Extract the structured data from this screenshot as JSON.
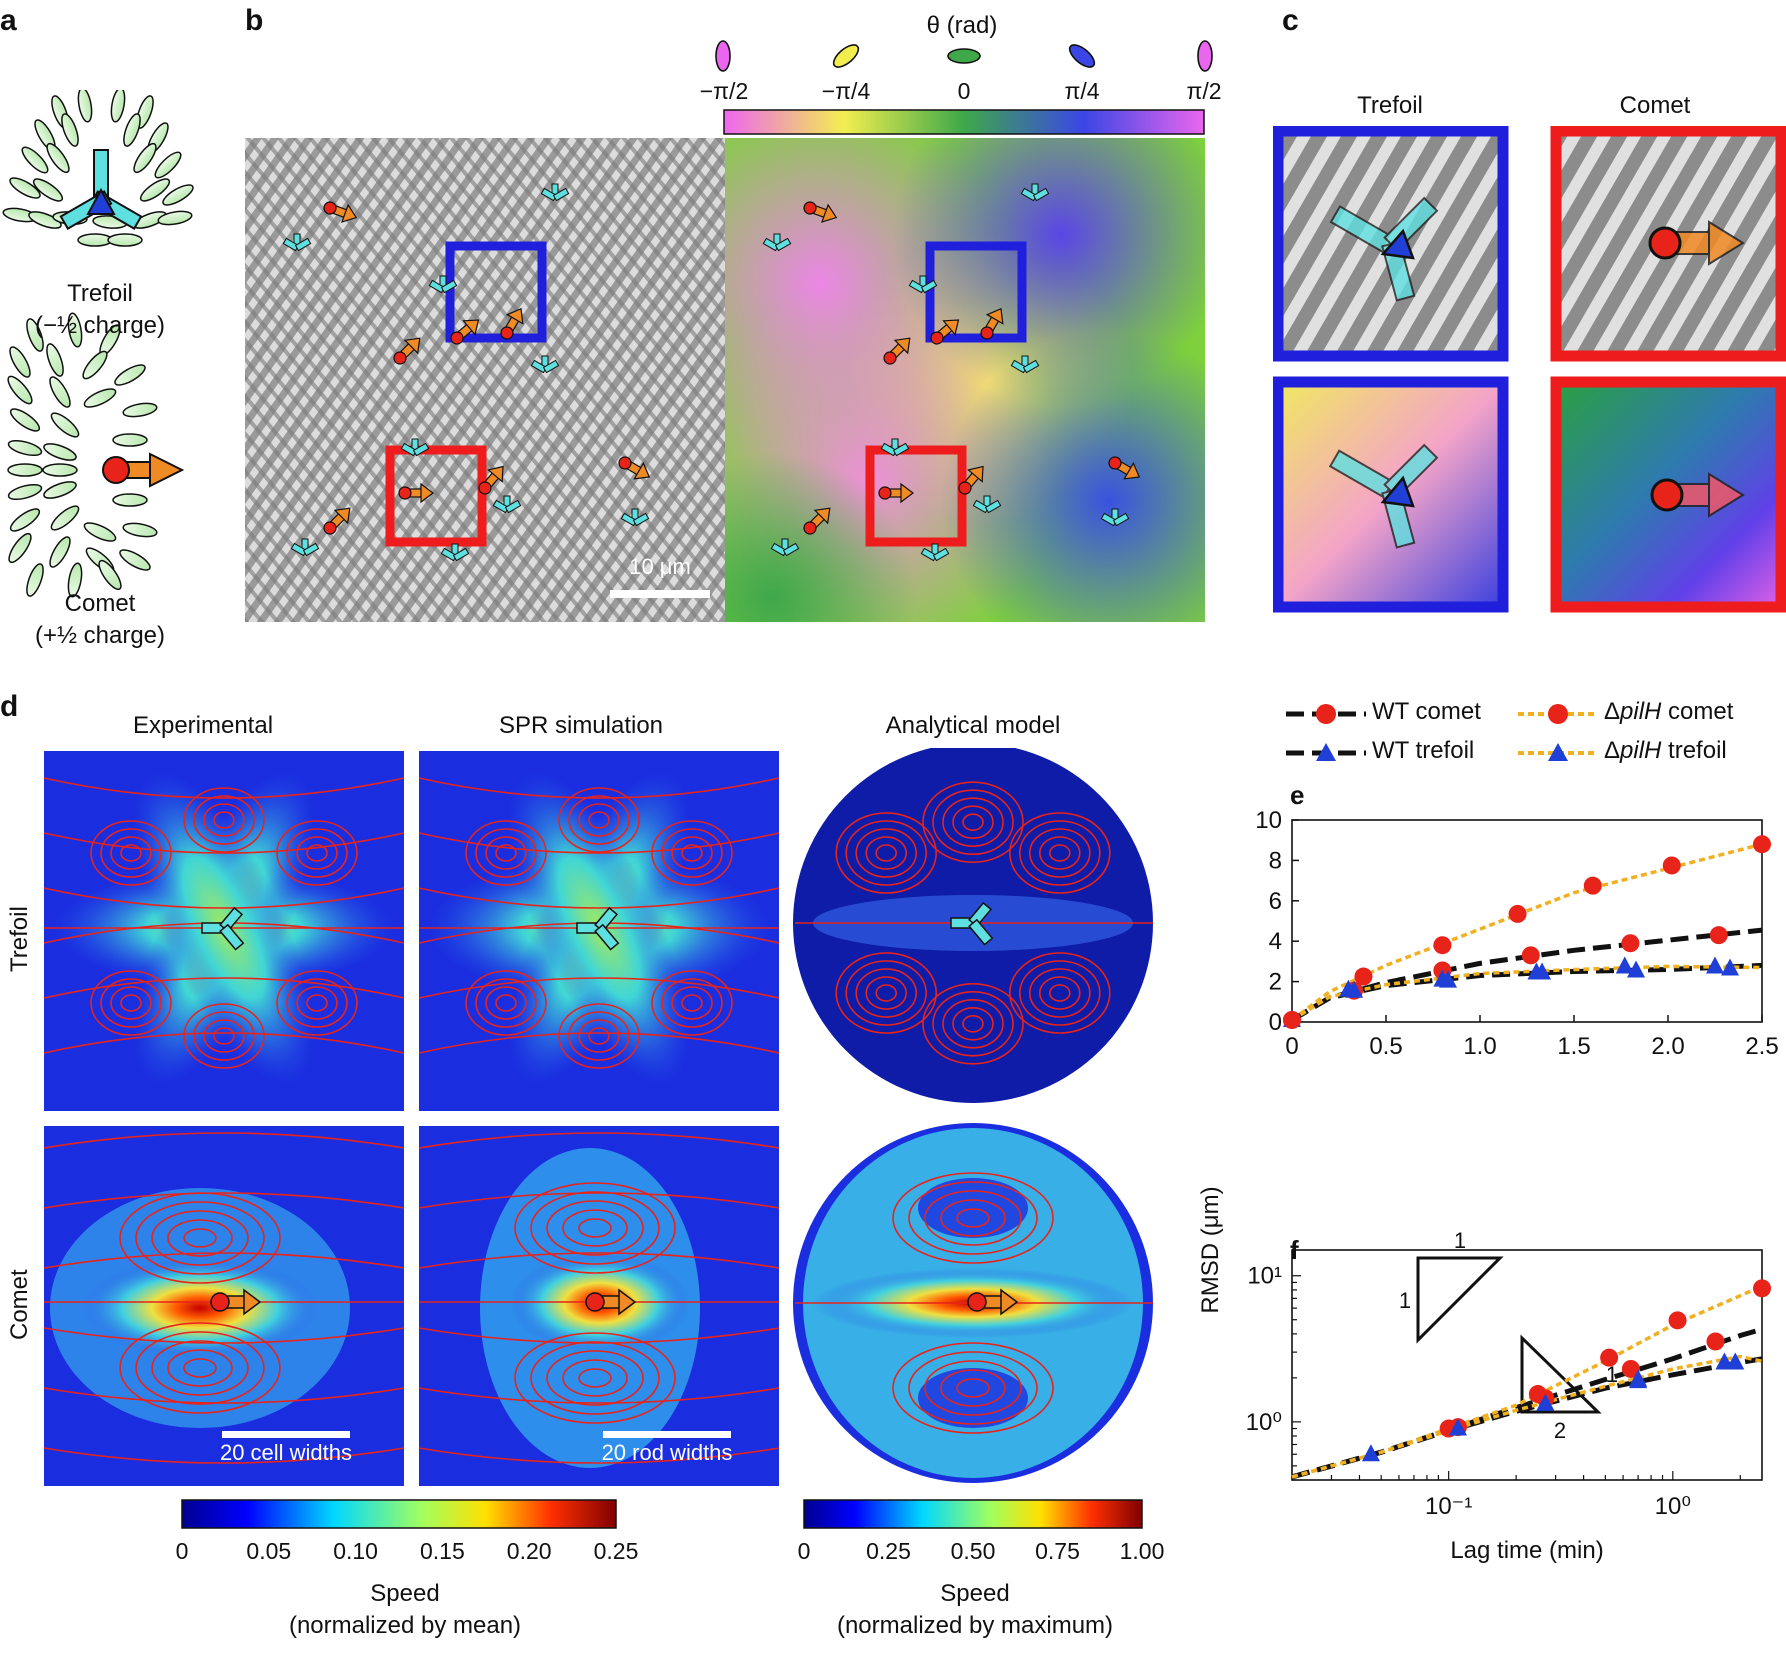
{
  "panel_letters": {
    "a": "a",
    "b": "b",
    "c": "c",
    "d": "d",
    "e": "e",
    "f": "f"
  },
  "panel_a": {
    "trefoil_label": "Trefoil",
    "trefoil_charge": "(−½ charge)",
    "comet_label": "Comet",
    "comet_charge": "(+½ charge)"
  },
  "panel_b": {
    "colorbar_title": "θ (rad)",
    "colorbar_ticks": [
      "−π/2",
      "−π/4",
      "0",
      "π/4",
      "π/2"
    ],
    "scale_bar": "10 μm"
  },
  "panel_c": {
    "col1": "Trefoil",
    "col2": "Comet"
  },
  "panel_d": {
    "col_titles": [
      "Experimental",
      "SPR simulation",
      "Analytical model"
    ],
    "row_titles": [
      "Trefoil",
      "Comet"
    ],
    "scale_cell": "20 cell widths",
    "scale_rod": "20 rod widths",
    "colorbar1_ticks": [
      "0",
      "0.05",
      "0.10",
      "0.15",
      "0.20",
      "0.25"
    ],
    "colorbar1_title_line1": "Speed",
    "colorbar1_title_line2": "(normalized by mean)",
    "colorbar2_ticks": [
      "0",
      "0.25",
      "0.50",
      "0.75",
      "1.00"
    ],
    "colorbar2_title_line1": "Speed",
    "colorbar2_title_line2": "(normalized by maximum)"
  },
  "legend": {
    "wt_comet": "WT comet",
    "wt_trefoil": "WT trefoil",
    "pilh_comet_prefix": "Δ",
    "pilh_comet_gene": "pilH",
    "pilh_comet_suffix": " comet",
    "pilh_trefoil_prefix": "Δ",
    "pilh_trefoil_gene": "pilH",
    "pilh_trefoil_suffix": " trefoil"
  },
  "colors": {
    "wt": "#111111",
    "pilh": "#f0b020",
    "comet_marker": "#e8231a",
    "trefoil_marker": "#1f3fd6",
    "box_blue": "#1f1fdc",
    "box_red": "#ee1c1c",
    "arrow_orange": "#f08a24",
    "trefoil_cyan": "#5fe0e0"
  },
  "chart_data": [
    {
      "type": "line",
      "panel": "e",
      "xlabel": "",
      "ylabel": "RMSD (μm)",
      "xlim": [
        0,
        2.5
      ],
      "ylim": [
        0,
        10
      ],
      "xticks": [
        "0",
        "0.5",
        "1.0",
        "1.5",
        "2.0",
        "2.5"
      ],
      "yticks": [
        "0",
        "2",
        "4",
        "6",
        "8",
        "10"
      ],
      "series": [
        {
          "name": "WT comet",
          "marker": "circle",
          "x": [
            0,
            0.33,
            0.8,
            1.27,
            1.8,
            2.27
          ],
          "y": [
            0.1,
            1.55,
            2.55,
            3.3,
            3.9,
            4.3
          ],
          "curve_x": [
            0,
            0.2,
            0.5,
            1.0,
            1.5,
            2.0,
            2.5
          ],
          "curve_y": [
            0.1,
            1.2,
            1.95,
            2.9,
            3.55,
            4.05,
            4.55
          ]
        },
        {
          "name": "WT trefoil",
          "marker": "triangle",
          "x": [
            0,
            0.33,
            0.83,
            1.33,
            1.83,
            2.33
          ],
          "y": [
            0.1,
            1.55,
            2.05,
            2.45,
            2.55,
            2.65
          ],
          "curve_x": [
            0,
            0.2,
            0.5,
            1.0,
            1.5,
            2.0,
            2.5
          ],
          "curve_y": [
            0.1,
            1.2,
            1.8,
            2.3,
            2.5,
            2.6,
            2.8
          ]
        },
        {
          "name": "ΔpilH comet",
          "marker": "circle",
          "x": [
            0,
            0.38,
            0.8,
            1.2,
            1.6,
            2.02,
            2.5
          ],
          "y": [
            0.1,
            2.25,
            3.8,
            5.35,
            6.75,
            7.75,
            8.8
          ],
          "curve_x": [
            0,
            0.2,
            0.5,
            1.0,
            1.5,
            2.0,
            2.5
          ],
          "curve_y": [
            0.1,
            1.5,
            2.8,
            4.6,
            6.4,
            7.6,
            8.8
          ]
        },
        {
          "name": "ΔpilH trefoil",
          "marker": "triangle",
          "x": [
            0.3,
            0.8,
            1.3,
            1.77,
            2.25
          ],
          "y": [
            1.6,
            2.1,
            2.45,
            2.75,
            2.75
          ],
          "curve_x": [
            0,
            0.2,
            0.5,
            1.0,
            1.5,
            2.0,
            2.5
          ],
          "curve_y": [
            0.1,
            1.25,
            1.85,
            2.4,
            2.6,
            2.75,
            2.7
          ]
        }
      ]
    },
    {
      "type": "line",
      "panel": "f",
      "scale": "log-log",
      "xlabel": "Lag time (min)",
      "ylabel": "RMSD (μm)",
      "xlim": [
        0.02,
        2.5
      ],
      "ylim": [
        0.4,
        15
      ],
      "xticks": [
        "10⁻¹",
        "10⁰"
      ],
      "yticks": [
        "10⁰",
        "10¹"
      ],
      "slope_labels": [
        "1",
        "1",
        "1",
        "2"
      ],
      "series": [
        {
          "name": "WT comet",
          "marker": "circle",
          "x": [
            0.11,
            0.27,
            0.65,
            1.55
          ],
          "y": [
            0.92,
            1.45,
            2.3,
            3.55
          ],
          "curve_x": [
            0.02,
            0.05,
            0.1,
            0.2,
            0.5,
            1.0,
            2.0,
            2.5
          ],
          "curve_y": [
            0.42,
            0.62,
            0.88,
            1.25,
            1.95,
            2.7,
            3.9,
            4.3
          ]
        },
        {
          "name": "WT trefoil",
          "marker": "triangle",
          "x": [
            0.045,
            0.11,
            0.27,
            0.7,
            1.9
          ],
          "y": [
            0.6,
            0.9,
            1.33,
            1.9,
            2.55
          ],
          "curve_x": [
            0.02,
            0.05,
            0.1,
            0.2,
            0.5,
            1.0,
            2.0,
            2.5
          ],
          "curve_y": [
            0.42,
            0.62,
            0.87,
            1.18,
            1.7,
            2.1,
            2.55,
            2.7
          ]
        },
        {
          "name": "ΔpilH comet",
          "marker": "circle",
          "x": [
            0.1,
            0.25,
            0.52,
            1.05,
            2.5
          ],
          "y": [
            0.9,
            1.55,
            2.75,
            4.95,
            8.2
          ],
          "curve_x": [
            0.02,
            0.05,
            0.1,
            0.2,
            0.5,
            1.0,
            2.0,
            2.5
          ],
          "curve_y": [
            0.42,
            0.62,
            0.9,
            1.3,
            2.6,
            4.6,
            7.3,
            8.5
          ]
        },
        {
          "name": "ΔpilH trefoil",
          "marker": "triangle",
          "x": [
            0.11,
            0.27,
            0.7,
            1.7
          ],
          "y": [
            0.9,
            1.33,
            1.95,
            2.55
          ],
          "curve_x": [
            0.02,
            0.05,
            0.1,
            0.2,
            0.5,
            1.0,
            2.0,
            2.5
          ],
          "curve_y": [
            0.42,
            0.62,
            0.87,
            1.2,
            1.75,
            2.3,
            2.8,
            2.6
          ]
        }
      ]
    }
  ]
}
